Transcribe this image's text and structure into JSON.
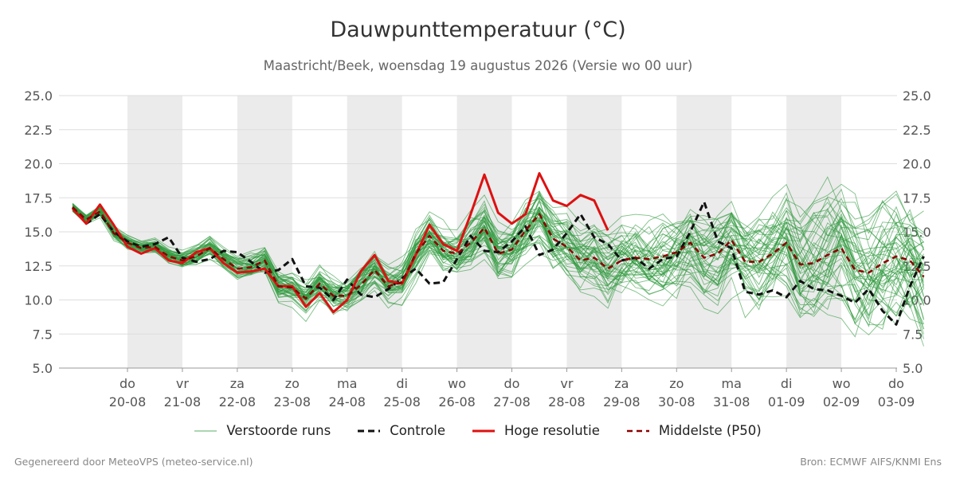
{
  "title": "Dauwpunttemperatuur (°C)",
  "subtitle": "Maastricht/Beek, woensdag 19 augustus 2026 (Versie wo 00 uur)",
  "footer": {
    "left": "Gegenereerd door MeteoVPS (meteo-service.nl)",
    "right": "Bron: ECMWF AIFS/KNMI Ens"
  },
  "chart_data": {
    "type": "line",
    "ylim": [
      5,
      25
    ],
    "yticks": [
      "5.0",
      "7.5",
      "10.0",
      "12.5",
      "15.0",
      "17.5",
      "20.0",
      "22.5",
      "25.0"
    ],
    "x_start_day": 0,
    "x_end_day": 15.25,
    "x_step_days": 0.25,
    "x_ticks": [
      {
        "day": "do",
        "date": "20-08"
      },
      {
        "day": "vr",
        "date": "21-08"
      },
      {
        "day": "za",
        "date": "22-08"
      },
      {
        "day": "zo",
        "date": "23-08"
      },
      {
        "day": "ma",
        "date": "24-08"
      },
      {
        "day": "di",
        "date": "25-08"
      },
      {
        "day": "wo",
        "date": "26-08"
      },
      {
        "day": "do",
        "date": "27-08"
      },
      {
        "day": "vr",
        "date": "28-08"
      },
      {
        "day": "za",
        "date": "29-08"
      },
      {
        "day": "zo",
        "date": "30-08"
      },
      {
        "day": "ma",
        "date": "31-08"
      },
      {
        "day": "di",
        "date": "01-09"
      },
      {
        "day": "wo",
        "date": "02-09"
      },
      {
        "day": "do",
        "date": "03-09"
      }
    ],
    "shaded_days": [
      "20-08",
      "22-08",
      "24-08",
      "26-08",
      "28-08",
      "30-08",
      "01-09"
    ],
    "ensemble_members": 50,
    "colors": {
      "ensemble": "#2e9a3e",
      "control": "#111111",
      "high_res": "#dd1111",
      "median": "#8b0000",
      "shade": "#ebebeb",
      "grid": "#dddddd"
    },
    "series": [
      {
        "name": "Controle",
        "style": "dashed",
        "values": [
          16.8,
          15.6,
          16.3,
          15.0,
          14.3,
          13.9,
          14.1,
          14.6,
          13.1,
          12.8,
          13.0,
          13.6,
          13.5,
          12.8,
          12.0,
          12.2,
          13.0,
          11.0,
          10.9,
          10.0,
          11.5,
          10.4,
          10.2,
          10.8,
          11.6,
          12.3,
          11.2,
          11.3,
          13.0,
          14.7,
          13.6,
          13.5,
          14.3,
          15.4,
          13.3,
          13.7,
          14.9,
          16.3,
          14.6,
          14.1,
          12.9,
          13.1,
          12.3,
          13.0,
          13.2,
          15.0,
          17.2,
          14.3,
          13.8,
          10.6,
          10.4,
          10.7,
          10.2,
          11.4,
          10.8,
          10.7,
          10.3,
          9.8,
          10.8,
          9.2,
          8.2,
          11.0,
          13.2
        ]
      },
      {
        "name": "Hoge resolutie",
        "style": "solid",
        "values": [
          16.7,
          15.6,
          17.0,
          15.5,
          13.9,
          13.4,
          13.8,
          12.9,
          12.7,
          13.5,
          13.8,
          12.7,
          12.0,
          12.1,
          12.3,
          11.0,
          11.0,
          9.5,
          10.5,
          9.1,
          10.0,
          12.1,
          13.3,
          11.4,
          11.2,
          13.3,
          15.5,
          14.1,
          13.6,
          16.3,
          19.2,
          16.4,
          15.6,
          16.3,
          19.3,
          17.3,
          16.9,
          17.7,
          17.3,
          15.1
        ]
      },
      {
        "name": "Middelste (P50)",
        "style": "dashed",
        "values": [
          16.8,
          15.9,
          16.5,
          14.9,
          14.2,
          13.8,
          13.9,
          13.2,
          12.9,
          13.2,
          13.8,
          13.0,
          12.3,
          12.4,
          12.9,
          11.0,
          10.9,
          10.1,
          11.2,
          10.3,
          10.3,
          11.1,
          12.2,
          11.0,
          11.3,
          13.4,
          14.7,
          13.6,
          13.4,
          14.2,
          15.3,
          13.4,
          13.7,
          15.1,
          16.3,
          14.5,
          13.9,
          12.9,
          13.1,
          12.3,
          12.9,
          13.1,
          13.0,
          13.2,
          13.5,
          14.2,
          13.1,
          13.4,
          14.4,
          12.8,
          12.8,
          13.4,
          14.2,
          12.6,
          12.7,
          13.3,
          13.8,
          12.2,
          12.0,
          12.7,
          13.2,
          12.9,
          11.7
        ]
      }
    ]
  },
  "legend": [
    {
      "key": "ensemble",
      "label": "Verstoorde runs"
    },
    {
      "key": "control",
      "label": "Controle"
    },
    {
      "key": "high_res",
      "label": "Hoge resolutie"
    },
    {
      "key": "median",
      "label": "Middelste (P50)"
    }
  ]
}
